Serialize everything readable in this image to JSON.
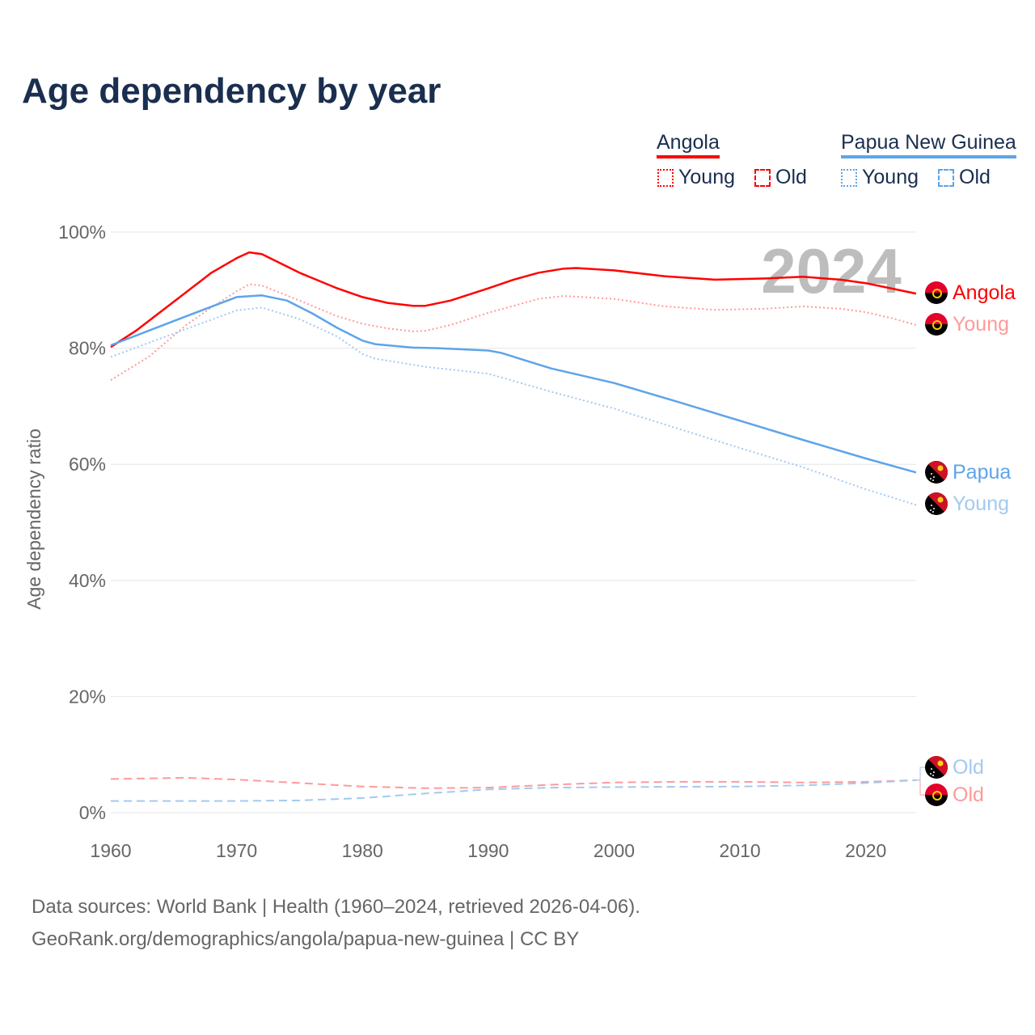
{
  "title": "Age dependency by year",
  "legend": {
    "countries": [
      {
        "name": "Angola",
        "color": "#ff0000",
        "young": "Young",
        "old": "Old"
      },
      {
        "name": "Papua New Guinea",
        "color": "#5ea4ea",
        "young": "Young",
        "old": "Old"
      }
    ]
  },
  "footer": {
    "line1": "Data sources: World Bank | Health (1960–2024, retrieved 2026-04-06).",
    "line2": "GeoRank.org/demographics/angola/papua-new-guinea | CC BY"
  },
  "chart_data": {
    "type": "line",
    "title": "Age dependency by year",
    "year_watermark": "2024",
    "xlabel": "",
    "ylabel": "Age dependency ratio",
    "xlim": [
      1960,
      2024
    ],
    "ylim": [
      0,
      100
    ],
    "x_ticks": [
      1960,
      1970,
      1980,
      1990,
      2000,
      2010,
      2020
    ],
    "y_ticks": [
      0,
      20,
      40,
      60,
      80,
      100
    ],
    "y_tick_labels": [
      "0%",
      "20%",
      "40%",
      "60%",
      "80%",
      "100%"
    ],
    "grid": true,
    "series": [
      {
        "name": "Angola",
        "end_label": "Angola",
        "country": "angola",
        "color": "#ff0000",
        "style": "solid",
        "x": [
          1960,
          1962,
          1965,
          1968,
          1970,
          1971,
          1972,
          1975,
          1978,
          1980,
          1982,
          1984,
          1985,
          1987,
          1990,
          1992,
          1994,
          1996,
          1997,
          2000,
          2004,
          2008,
          2012,
          2015,
          2018,
          2020,
          2022,
          2024
        ],
        "y": [
          80.2,
          83,
          88,
          93,
          95.5,
          96.5,
          96.2,
          93,
          90.3,
          88.8,
          87.8,
          87.3,
          87.3,
          88.2,
          90.3,
          91.8,
          93,
          93.7,
          93.8,
          93.4,
          92.4,
          91.8,
          92,
          92.3,
          91.8,
          91.2,
          90.3,
          89.4
        ]
      },
      {
        "name": "Angola Young",
        "end_label": "Young",
        "country": "angola",
        "color": "#ff9a9a",
        "style": "dotted",
        "x": [
          1960,
          1963,
          1966,
          1968,
          1970,
          1971,
          1972,
          1975,
          1978,
          1980,
          1982,
          1984,
          1985,
          1987,
          1990,
          1994,
          1996,
          2000,
          2004,
          2008,
          2012,
          2015,
          2018,
          2020,
          2022,
          2024
        ],
        "y": [
          74.5,
          78.5,
          84,
          87,
          89.8,
          91,
          90.8,
          88.2,
          85.5,
          84.2,
          83.4,
          82.9,
          83,
          84,
          86.1,
          88.5,
          89,
          88.5,
          87.2,
          86.6,
          86.8,
          87.2,
          86.8,
          86.2,
          85.2,
          84
        ]
      },
      {
        "name": "Angola Old",
        "end_label": "Old",
        "country": "angola",
        "color": "#ff9a9a",
        "style": "dashed",
        "x": [
          1960,
          1966,
          1970,
          1975,
          1980,
          1985,
          1990,
          1995,
          2000,
          2005,
          2010,
          2015,
          2020,
          2024
        ],
        "y": [
          5.8,
          6.0,
          5.7,
          5.1,
          4.5,
          4.2,
          4.3,
          4.8,
          5.2,
          5.3,
          5.3,
          5.2,
          5.3,
          5.6
        ]
      },
      {
        "name": "Papua New Guinea",
        "end_label": "Papua",
        "country": "png",
        "color": "#5ea4ea",
        "style": "solid",
        "x": [
          1960,
          1963,
          1966,
          1970,
          1972,
          1974,
          1976,
          1978,
          1980,
          1981,
          1984,
          1986,
          1990,
          1991,
          1995,
          2000,
          2005,
          2010,
          2015,
          2020,
          2024
        ],
        "y": [
          80.5,
          83,
          85.5,
          88.8,
          89.1,
          88.2,
          86,
          83.5,
          81.3,
          80.7,
          80.1,
          80,
          79.6,
          79.2,
          76.5,
          74,
          70.8,
          67.5,
          64.2,
          61,
          58.6
        ]
      },
      {
        "name": "Papua New Guinea Young",
        "end_label": "Young",
        "country": "png",
        "color": "#a3c9f0",
        "style": "dotted",
        "x": [
          1960,
          1965,
          1970,
          1972,
          1975,
          1978,
          1980,
          1981,
          1985,
          1990,
          1995,
          2000,
          2005,
          2010,
          2015,
          2020,
          2024
        ],
        "y": [
          78.5,
          82.5,
          86.5,
          87,
          85,
          82,
          79,
          78.2,
          76.8,
          75.6,
          72.5,
          69.6,
          66.2,
          62.8,
          59.5,
          55.7,
          53
        ]
      },
      {
        "name": "Papua New Guinea Old",
        "end_label": "Old",
        "country": "png",
        "color": "#a3c9f0",
        "style": "dashed",
        "x": [
          1960,
          1970,
          1975,
          1980,
          1985,
          1990,
          1995,
          2000,
          2010,
          2015,
          2020,
          2024
        ],
        "y": [
          2.0,
          2.0,
          2.1,
          2.5,
          3.3,
          4.0,
          4.3,
          4.4,
          4.5,
          4.7,
          5.1,
          5.6
        ]
      }
    ],
    "end_label_offsets_order": [
      "Angola",
      "Angola Young",
      "Papua New Guinea",
      "Papua New Guinea Young",
      "Papua New Guinea Old",
      "Angola Old"
    ]
  }
}
